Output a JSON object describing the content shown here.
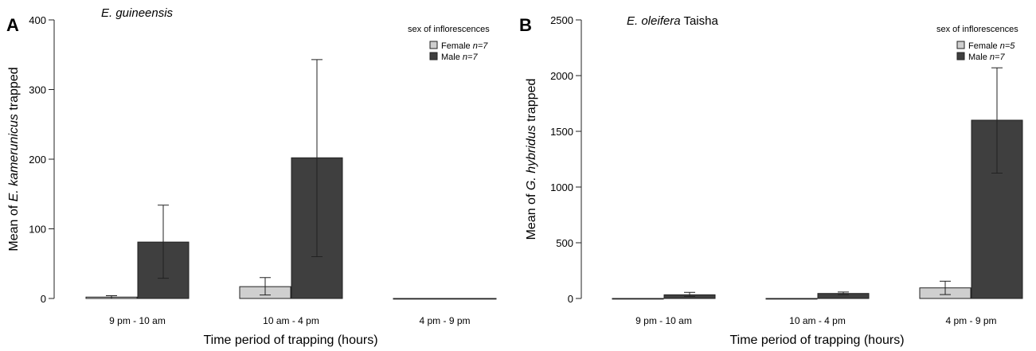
{
  "chart_data": [
    {
      "panel": "A",
      "type": "bar",
      "title_italic": "E. guineensis",
      "title_rest": "",
      "ylabel_pre": "Mean of ",
      "ylabel_italic": "E. kamerunicus",
      "ylabel_post": " trapped",
      "xlabel": "Time period of trapping (hours)",
      "ylim": [
        0,
        400
      ],
      "yticks": [
        0,
        100,
        200,
        300,
        400
      ],
      "categories": [
        "9 pm - 10 am",
        "10 am - 4 pm",
        "4 pm - 9 pm"
      ],
      "legend_title": "sex of inflorescences",
      "legend_position": "top-right",
      "series": [
        {
          "name": "Female",
          "n_label": "n=7",
          "color": "#cfcfcf",
          "values": [
            2,
            17,
            0
          ],
          "err_low": [
            0,
            5,
            0
          ],
          "err_high": [
            4,
            30,
            0
          ]
        },
        {
          "name": "Male",
          "n_label": "n=7",
          "color": "#3f3f3f",
          "values": [
            81,
            202,
            0
          ],
          "err_low": [
            29,
            60,
            0
          ],
          "err_high": [
            134,
            343,
            0
          ]
        }
      ]
    },
    {
      "panel": "B",
      "type": "bar",
      "title_italic": "E. oleifera",
      "title_rest": " Taisha",
      "ylabel_pre": "Mean of ",
      "ylabel_italic": "G. hybridus",
      "ylabel_post": " trapped",
      "xlabel": "Time period of trapping (hours)",
      "ylim": [
        0,
        2500
      ],
      "yticks": [
        0,
        500,
        1000,
        1500,
        2000,
        2500
      ],
      "categories": [
        "9 pm - 10 am",
        "10 am - 4 pm",
        "4 pm - 9 pm"
      ],
      "legend_title": "sex of inflorescences",
      "legend_position": "top-right",
      "series": [
        {
          "name": "Female",
          "n_label": "n=5",
          "color": "#cfcfcf",
          "values": [
            0,
            0,
            95
          ],
          "err_low": [
            0,
            0,
            35
          ],
          "err_high": [
            0,
            0,
            155
          ]
        },
        {
          "name": "Male",
          "n_label": "n=7",
          "color": "#3f3f3f",
          "values": [
            33,
            45,
            1600
          ],
          "err_low": [
            18,
            35,
            1125
          ],
          "err_high": [
            55,
            58,
            2070
          ]
        }
      ]
    }
  ]
}
